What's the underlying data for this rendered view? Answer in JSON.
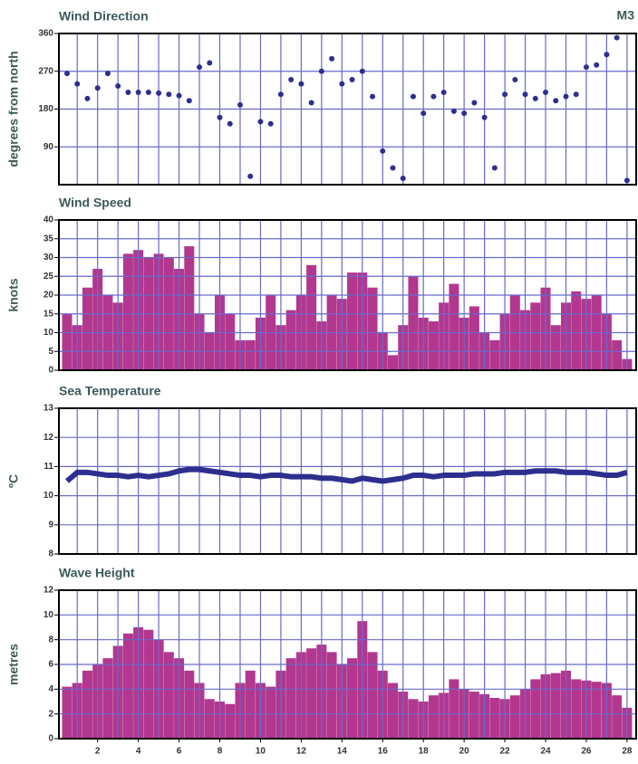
{
  "header": {
    "station": "M3"
  },
  "chart_data": [
    {
      "type": "scatter",
      "title": "Wind Direction",
      "y_label": "degrees from north",
      "color": "#2d2f8f",
      "x": [
        0.5,
        1,
        1.5,
        2,
        2.5,
        3,
        3.5,
        4,
        4.5,
        5,
        5.5,
        6,
        6.5,
        7,
        7.5,
        8,
        8.5,
        9,
        9.5,
        10,
        10.5,
        11,
        11.5,
        12,
        12.5,
        13,
        13.5,
        14,
        14.5,
        15,
        15.5,
        16,
        16.5,
        17,
        17.5,
        18,
        18.5,
        19,
        19.5,
        20,
        20.5,
        21,
        21.5,
        22,
        22.5,
        23,
        23.5,
        24,
        24.5,
        25,
        25.5,
        26,
        26.5,
        27,
        27.5,
        28
      ],
      "values": [
        265,
        240,
        205,
        230,
        265,
        235,
        220,
        220,
        220,
        218,
        215,
        212,
        200,
        280,
        290,
        160,
        145,
        190,
        20,
        150,
        145,
        215,
        250,
        240,
        195,
        270,
        300,
        240,
        250,
        270,
        210,
        80,
        40,
        15,
        210,
        170,
        210,
        220,
        175,
        170,
        195,
        160,
        40,
        215,
        250,
        215,
        205,
        220,
        200,
        210,
        215,
        280,
        285,
        310,
        350,
        10
      ],
      "xlim": [
        0.1,
        28.45
      ],
      "ylim": [
        0,
        360
      ],
      "yticks": [
        90,
        180,
        270,
        360
      ],
      "xgrid": [
        1,
        2,
        3,
        4,
        5,
        6,
        7,
        8,
        9,
        10,
        11,
        12,
        13,
        14,
        15,
        16,
        17,
        18,
        19,
        20,
        21,
        22,
        23,
        24,
        25,
        26,
        27,
        28
      ],
      "grid": true
    },
    {
      "type": "bar",
      "title": "Wind Speed",
      "y_label": "knots",
      "color": "#b2378f",
      "x": [
        0.5,
        1,
        1.5,
        2,
        2.5,
        3,
        3.5,
        4,
        4.5,
        5,
        5.5,
        6,
        6.5,
        7,
        7.5,
        8,
        8.5,
        9,
        9.5,
        10,
        10.5,
        11,
        11.5,
        12,
        12.5,
        13,
        13.5,
        14,
        14.5,
        15,
        15.5,
        16,
        16.5,
        17,
        17.5,
        18,
        18.5,
        19,
        19.5,
        20,
        20.5,
        21,
        21.5,
        22,
        22.5,
        23,
        23.5,
        24,
        24.5,
        25,
        25.5,
        26,
        26.5,
        27,
        27.5,
        28
      ],
      "values": [
        15,
        12,
        22,
        27,
        20,
        18,
        31,
        32,
        30,
        31,
        30,
        27,
        33,
        15,
        10,
        20,
        15,
        8,
        8,
        14,
        20,
        12,
        16,
        20,
        28,
        13,
        20,
        19,
        26,
        26,
        22,
        10,
        4,
        12,
        25,
        14,
        13,
        18,
        23,
        14,
        17,
        10,
        8,
        15,
        20,
        16,
        18,
        22,
        12,
        18,
        21,
        19,
        20,
        15,
        8,
        3
      ],
      "xlim": [
        0.1,
        28.45
      ],
      "ylim": [
        0,
        40
      ],
      "yticks": [
        0,
        5,
        10,
        15,
        20,
        25,
        30,
        35,
        40
      ],
      "xgrid": [
        1,
        2,
        3,
        4,
        5,
        6,
        7,
        8,
        9,
        10,
        11,
        12,
        13,
        14,
        15,
        16,
        17,
        18,
        19,
        20,
        21,
        22,
        23,
        24,
        25,
        26,
        27,
        28
      ],
      "grid": true
    },
    {
      "type": "line",
      "title": "Sea Temperature",
      "y_label": "ºC",
      "color": "#2d2f8f",
      "x": [
        0.5,
        1,
        1.5,
        2,
        2.5,
        3,
        3.5,
        4,
        4.5,
        5,
        5.5,
        6,
        6.5,
        7,
        7.5,
        8,
        8.5,
        9,
        9.5,
        10,
        10.5,
        11,
        11.5,
        12,
        12.5,
        13,
        13.5,
        14,
        14.5,
        15,
        15.5,
        16,
        16.5,
        17,
        17.5,
        18,
        18.5,
        19,
        19.5,
        20,
        20.5,
        21,
        21.5,
        22,
        22.5,
        23,
        23.5,
        24,
        24.5,
        25,
        25.5,
        26,
        26.5,
        27,
        27.5,
        28
      ],
      "values": [
        10.5,
        10.8,
        10.8,
        10.75,
        10.7,
        10.7,
        10.65,
        10.7,
        10.65,
        10.7,
        10.75,
        10.85,
        10.9,
        10.9,
        10.85,
        10.8,
        10.75,
        10.7,
        10.7,
        10.65,
        10.7,
        10.7,
        10.65,
        10.65,
        10.65,
        10.6,
        10.6,
        10.55,
        10.5,
        10.6,
        10.55,
        10.5,
        10.55,
        10.6,
        10.7,
        10.7,
        10.65,
        10.7,
        10.7,
        10.7,
        10.75,
        10.75,
        10.75,
        10.8,
        10.8,
        10.8,
        10.85,
        10.85,
        10.85,
        10.8,
        10.8,
        10.8,
        10.75,
        10.7,
        10.7,
        10.8
      ],
      "xlim": [
        0.1,
        28.45
      ],
      "ylim": [
        8,
        13
      ],
      "yticks": [
        8,
        9,
        10,
        11,
        12,
        13
      ],
      "xgrid": [
        1,
        2,
        3,
        4,
        5,
        6,
        7,
        8,
        9,
        10,
        11,
        12,
        13,
        14,
        15,
        16,
        17,
        18,
        19,
        20,
        21,
        22,
        23,
        24,
        25,
        26,
        27,
        28
      ],
      "grid": true
    },
    {
      "type": "bar",
      "title": "Wave Height",
      "y_label": "metres",
      "color": "#b2378f",
      "x": [
        0.5,
        1,
        1.5,
        2,
        2.5,
        3,
        3.5,
        4,
        4.5,
        5,
        5.5,
        6,
        6.5,
        7,
        7.5,
        8,
        8.5,
        9,
        9.5,
        10,
        10.5,
        11,
        11.5,
        12,
        12.5,
        13,
        13.5,
        14,
        14.5,
        15,
        15.5,
        16,
        16.5,
        17,
        17.5,
        18,
        18.5,
        19,
        19.5,
        20,
        20.5,
        21,
        21.5,
        22,
        22.5,
        23,
        23.5,
        24,
        24.5,
        25,
        25.5,
        26,
        26.5,
        27,
        27.5,
        28
      ],
      "values": [
        4.2,
        4.5,
        5.5,
        6,
        6.5,
        7.5,
        8.5,
        9,
        8.8,
        8,
        7,
        6.5,
        5.5,
        4.5,
        3.2,
        3,
        2.8,
        4.5,
        5.5,
        4.5,
        4.2,
        5.5,
        6.5,
        7,
        7.3,
        7.6,
        7,
        6,
        6.5,
        9.5,
        7,
        5.5,
        4.5,
        3.8,
        3.2,
        3,
        3.5,
        3.7,
        4.8,
        4,
        3.8,
        3.6,
        3.3,
        3.2,
        3.5,
        4,
        4.8,
        5.2,
        5.3,
        5.5,
        4.8,
        4.7,
        4.6,
        4.5,
        3.5,
        2.5
      ],
      "xlim": [
        0.1,
        28.45
      ],
      "ylim": [
        0,
        12
      ],
      "yticks": [
        0,
        2,
        4,
        6,
        8,
        10,
        12
      ],
      "xticks": [
        2,
        4,
        6,
        8,
        10,
        12,
        14,
        16,
        18,
        20,
        22,
        24,
        26,
        28
      ],
      "xgrid": [
        1,
        2,
        3,
        4,
        5,
        6,
        7,
        8,
        9,
        10,
        11,
        12,
        13,
        14,
        15,
        16,
        17,
        18,
        19,
        20,
        21,
        22,
        23,
        24,
        25,
        26,
        27,
        28
      ],
      "grid": true
    }
  ]
}
